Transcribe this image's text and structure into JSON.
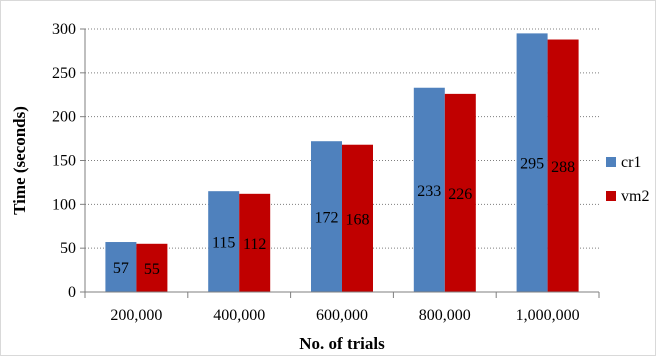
{
  "chart_data": {
    "type": "bar",
    "categories": [
      "200,000",
      "400,000",
      "600,000",
      "800,000",
      "1,000,000"
    ],
    "series": [
      {
        "name": "cr1",
        "values": [
          57,
          115,
          172,
          233,
          295
        ],
        "color": "#4f81bd"
      },
      {
        "name": "vm2",
        "values": [
          55,
          112,
          168,
          226,
          288
        ],
        "color": "#c00000"
      }
    ],
    "xlabel": "No. of trials",
    "ylabel": "Time (seconds)",
    "ylim": [
      0,
      300
    ],
    "yticks": [
      0,
      50,
      100,
      150,
      200,
      250,
      300
    ],
    "grid": true,
    "data_labels": true,
    "legend_position": "right"
  }
}
